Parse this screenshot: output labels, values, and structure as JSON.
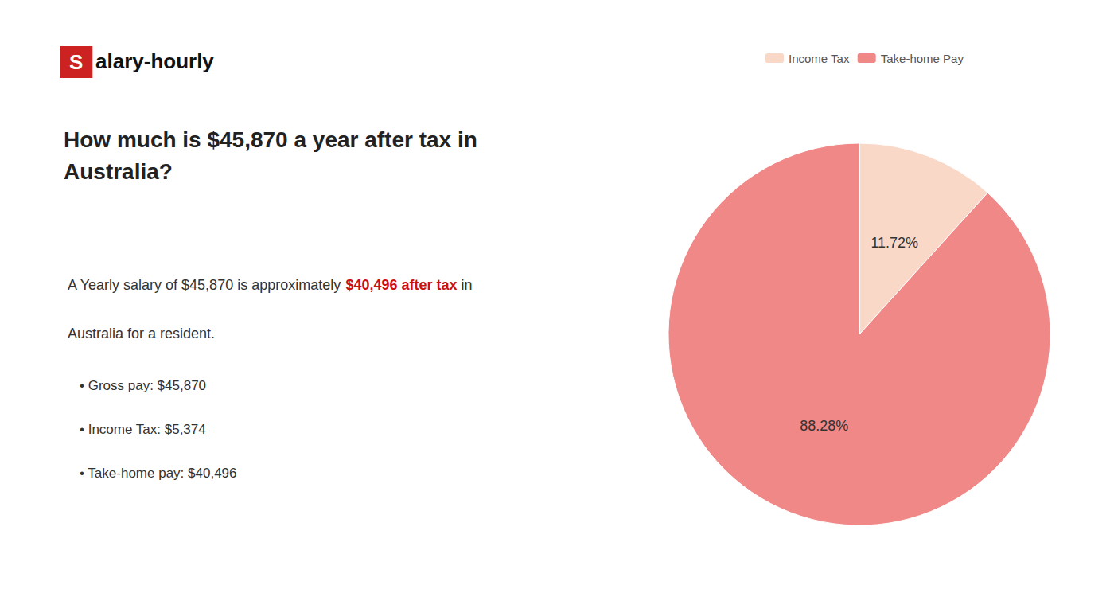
{
  "chart_data": {
    "type": "pie",
    "title": "How much is $45,870 a year after tax in\nAustralia?",
    "categories": [
      "Income Tax",
      "Take-home Pay"
    ],
    "values": [
      11.72,
      88.28
    ],
    "value_labels": [
      "11.72%",
      "88.28%"
    ],
    "colors": [
      "#f9d8c8",
      "#f08888"
    ],
    "legend": "top",
    "data_labels": true,
    "annotations": [
      {
        "text": "S",
        "color": "#cc2222"
      },
      {
        "text": "alary-hourly"
      },
      {
        "text": "A Yearly salary of $45,870 is approximately "
      },
      {
        "text": "$40,496 after tax",
        "color": "#cc1111"
      },
      {
        "text": " in"
      },
      {
        "text": "Australia for a resident."
      },
      {
        "text": "• Gross pay: $45,870"
      },
      {
        "text": "• Income Tax: $5,374"
      },
      {
        "text": "• Take-home pay: $40,496"
      }
    ]
  }
}
